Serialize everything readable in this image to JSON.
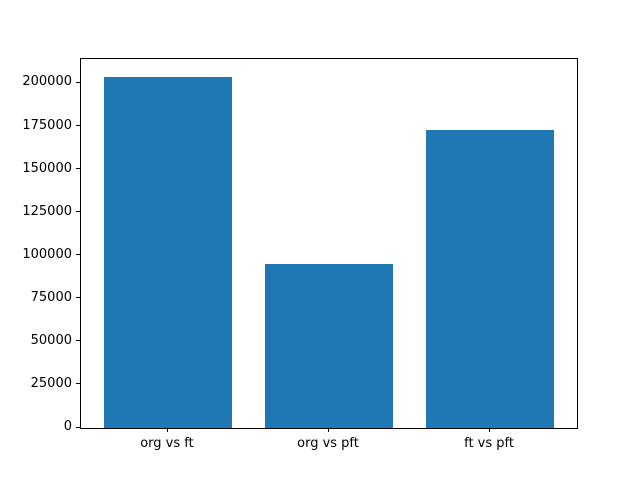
{
  "chart_data": {
    "type": "bar",
    "title": "",
    "xlabel": "",
    "ylabel": "",
    "categories": [
      "org vs ft",
      "org vs pft",
      "ft vs pft"
    ],
    "values": [
      204000,
      95000,
      173000
    ],
    "ylim": [
      0,
      214200
    ],
    "yticks": [
      0,
      25000,
      50000,
      75000,
      100000,
      125000,
      150000,
      175000,
      200000
    ],
    "bar_color": "#1f77b4",
    "axis_color": "#000000",
    "grid": false,
    "legend": "none"
  }
}
